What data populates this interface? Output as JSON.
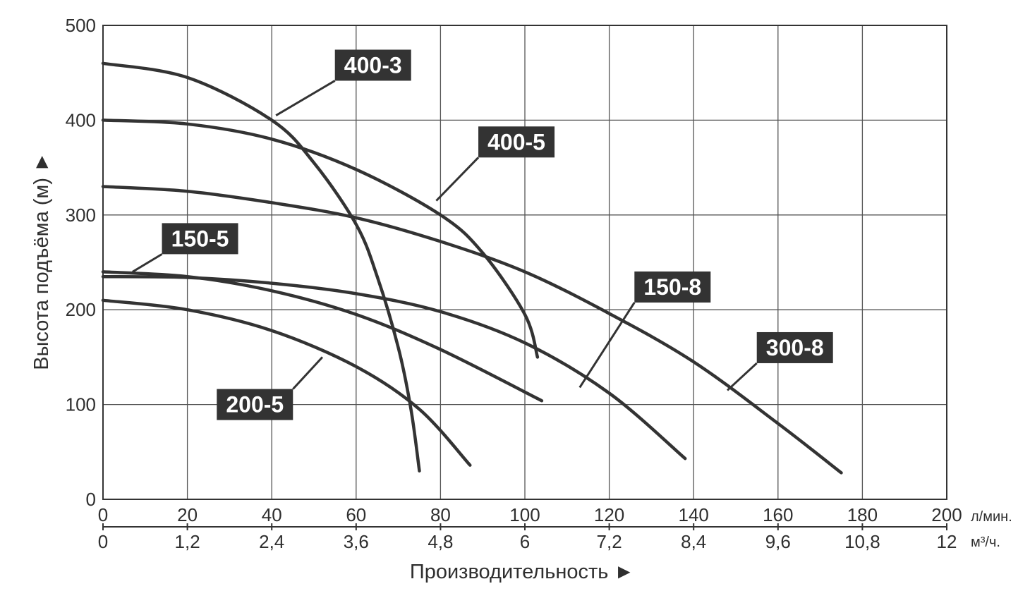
{
  "chart_data": {
    "type": "line",
    "xlabel": "Производительность ►",
    "ylabel": "Высота подъёма (м) ►",
    "x_unit": "л/мин.",
    "x2_unit": "м³/ч.",
    "xlim": [
      0,
      200
    ],
    "ylim": [
      0,
      500
    ],
    "grid": true,
    "x_ticks": [
      "0",
      "20",
      "40",
      "60",
      "80",
      "100",
      "120",
      "140",
      "160",
      "180",
      "200"
    ],
    "x2_ticks": [
      "0",
      "1,2",
      "2,4",
      "3,6",
      "4,8",
      "6",
      "7,2",
      "8,4",
      "9,6",
      "10,8",
      "12"
    ],
    "y_ticks": [
      "0",
      "100",
      "200",
      "300",
      "400",
      "500"
    ],
    "series": [
      {
        "name": "400-3",
        "x": [
          0,
          20,
          40,
          50,
          60,
          65,
          70,
          73,
          75
        ],
        "y": [
          460,
          445,
          400,
          355,
          290,
          235,
          160,
          95,
          30
        ]
      },
      {
        "name": "400-5",
        "x": [
          0,
          20,
          40,
          60,
          80,
          90,
          100,
          103
        ],
        "y": [
          400,
          396,
          380,
          348,
          300,
          260,
          195,
          150
        ]
      },
      {
        "name": "300-8",
        "x": [
          0,
          20,
          40,
          60,
          80,
          100,
          120,
          140,
          160,
          175
        ],
        "y": [
          330,
          325,
          313,
          297,
          272,
          240,
          196,
          145,
          80,
          28
        ]
      },
      {
        "name": "150-8",
        "x": [
          0,
          20,
          40,
          60,
          80,
          100,
          120,
          138
        ],
        "y": [
          235,
          234,
          228,
          217,
          198,
          165,
          112,
          43
        ]
      },
      {
        "name": "150-5",
        "x": [
          0,
          20,
          40,
          60,
          80,
          104
        ],
        "y": [
          240,
          235,
          220,
          195,
          158,
          104
        ]
      },
      {
        "name": "200-5",
        "x": [
          0,
          20,
          40,
          60,
          75,
          87
        ],
        "y": [
          210,
          200,
          178,
          140,
          95,
          36
        ]
      }
    ],
    "labels": [
      {
        "text": "400-3",
        "x": 64,
        "y": 458,
        "target_x": 41,
        "target_y": 405
      },
      {
        "text": "400-5",
        "x": 98,
        "y": 377,
        "target_x": 79,
        "target_y": 315
      },
      {
        "text": "150-5",
        "x": 23,
        "y": 275,
        "target_x": 7,
        "target_y": 240
      },
      {
        "text": "150-8",
        "x": 135,
        "y": 224,
        "target_x": 113,
        "target_y": 118
      },
      {
        "text": "300-8",
        "x": 164,
        "y": 160,
        "target_x": 148,
        "target_y": 115
      },
      {
        "text": "200-5",
        "x": 36,
        "y": 100,
        "target_x": 52,
        "target_y": 150
      }
    ]
  }
}
